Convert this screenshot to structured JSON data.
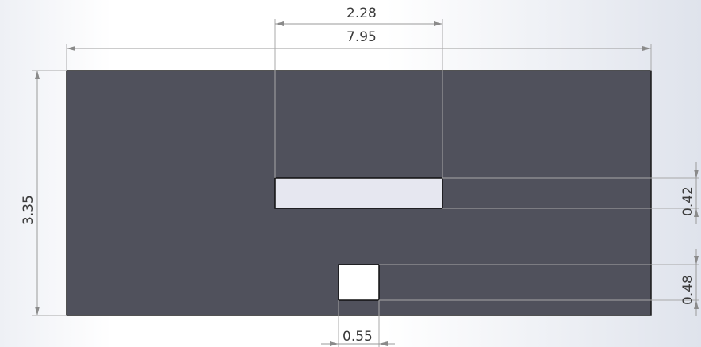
{
  "colors": {
    "plate": "#50515c",
    "plate_edge": "#1a1a1a",
    "cutout": "#e6e7f0",
    "cutout_small": "#ffffff",
    "dimension_line": "#9a9a9a",
    "dimension_text": "#3a3a3a"
  },
  "dimensions": {
    "overall_width": "7.95",
    "overall_height": "3.35",
    "slot_width": "2.28",
    "slot_height": "0.42",
    "square_width": "0.55",
    "square_height": "0.48"
  }
}
